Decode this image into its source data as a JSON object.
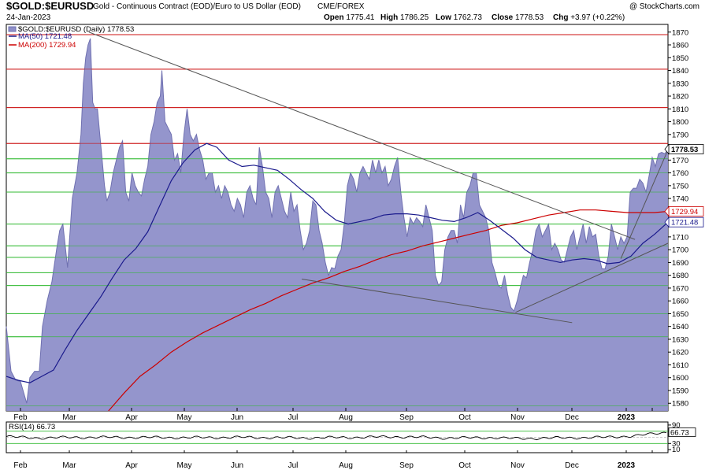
{
  "header": {
    "symbol": "$GOLD:$EURUSD",
    "description": "Gold - Continuous Contract (EOD)/Euro to US Dollar (EOD)",
    "exchange": "CME/FOREX",
    "watermark": "@ StockCharts.com",
    "date": "24-Jan-2023",
    "ohlc": [
      {
        "label": "Open",
        "value": "1775.41"
      },
      {
        "label": "High",
        "value": "1786.25"
      },
      {
        "label": "Low",
        "value": "1762.73"
      },
      {
        "label": "Close",
        "value": "1778.53"
      },
      {
        "label": "Chg",
        "value": "+3.97 (+0.22%)"
      }
    ]
  },
  "legend": {
    "main": "$GOLD:$EURUSD (Daily) 1778.53",
    "ma50": "MA(50) 1721.48",
    "ma200": "MA(200) 1729.94"
  },
  "price_tags": {
    "close": "1778.53",
    "ma200": "1729.94",
    "ma50": "1721.48"
  },
  "rsi": {
    "label": "RSI(14) 66.73",
    "value_tag": "66.73",
    "ticks": [
      "90",
      "70",
      "30",
      "10"
    ]
  },
  "colors": {
    "area_fill": "#8e8fc9",
    "area_line": "#6f70b0",
    "ma50": "#1a1a8c",
    "ma200": "#cc0000",
    "green_lines": "#33bb33",
    "red_lines": "#cc1111",
    "trend_lines": "#555555"
  },
  "chart_data": {
    "type": "area",
    "y_ticks": [
      1580,
      1590,
      1600,
      1610,
      1620,
      1630,
      1640,
      1650,
      1660,
      1670,
      1680,
      1690,
      1700,
      1710,
      1720,
      1730,
      1740,
      1750,
      1760,
      1770,
      1780,
      1790,
      1800,
      1810,
      1820,
      1830,
      1840,
      1850,
      1860,
      1870
    ],
    "ylim": [
      1574,
      1876
    ],
    "months": [
      "Feb",
      "Mar",
      "Apr",
      "May",
      "Jun",
      "Jul",
      "Aug",
      "Sep",
      "Oct",
      "Nov",
      "Dec",
      "2023",
      "Jan"
    ],
    "month_labels": [
      "Feb",
      "Mar",
      "Apr",
      "May",
      "Jun",
      "Jul",
      "Aug",
      "Sep",
      "Oct",
      "Nov",
      "Dec",
      "2023"
    ],
    "x_bold_label": "2023",
    "price": [
      [
        0,
        1640
      ],
      [
        6,
        1605
      ],
      [
        12,
        1598
      ],
      [
        18,
        1597
      ],
      [
        26,
        1580
      ],
      [
        30,
        1600
      ],
      [
        36,
        1605
      ],
      [
        42,
        1605
      ],
      [
        46,
        1640
      ],
      [
        52,
        1660
      ],
      [
        58,
        1675
      ],
      [
        64,
        1700
      ],
      [
        68,
        1715
      ],
      [
        72,
        1720
      ],
      [
        78,
        1686
      ],
      [
        84,
        1740
      ],
      [
        90,
        1760
      ],
      [
        95,
        1790
      ],
      [
        98,
        1830
      ],
      [
        101,
        1850
      ],
      [
        104,
        1860
      ],
      [
        107,
        1865
      ],
      [
        110,
        1815
      ],
      [
        113,
        1810
      ],
      [
        116,
        1810
      ],
      [
        119,
        1790
      ],
      [
        122,
        1770
      ],
      [
        125,
        1750
      ],
      [
        128,
        1738
      ],
      [
        132,
        1745
      ],
      [
        136,
        1760
      ],
      [
        140,
        1770
      ],
      [
        144,
        1780
      ],
      [
        148,
        1785
      ],
      [
        152,
        1745
      ],
      [
        156,
        1738
      ],
      [
        160,
        1760
      ],
      [
        164,
        1750
      ],
      [
        168,
        1745
      ],
      [
        172,
        1742
      ],
      [
        176,
        1755
      ],
      [
        180,
        1765
      ],
      [
        184,
        1790
      ],
      [
        188,
        1800
      ],
      [
        192,
        1815
      ],
      [
        196,
        1820
      ],
      [
        198,
        1840
      ],
      [
        202,
        1800
      ],
      [
        206,
        1795
      ],
      [
        210,
        1790
      ],
      [
        214,
        1770
      ],
      [
        218,
        1775
      ],
      [
        222,
        1760
      ],
      [
        226,
        1790
      ],
      [
        230,
        1810
      ],
      [
        234,
        1790
      ],
      [
        238,
        1785
      ],
      [
        242,
        1790
      ],
      [
        246,
        1778
      ],
      [
        250,
        1770
      ],
      [
        254,
        1755
      ],
      [
        258,
        1760
      ],
      [
        262,
        1760
      ],
      [
        266,
        1745
      ],
      [
        270,
        1750
      ],
      [
        274,
        1740
      ],
      [
        278,
        1750
      ],
      [
        282,
        1745
      ],
      [
        286,
        1735
      ],
      [
        290,
        1730
      ],
      [
        294,
        1740
      ],
      [
        298,
        1735
      ],
      [
        302,
        1725
      ],
      [
        306,
        1745
      ],
      [
        310,
        1750
      ],
      [
        314,
        1740
      ],
      [
        318,
        1735
      ],
      [
        322,
        1780
      ],
      [
        326,
        1765
      ],
      [
        330,
        1745
      ],
      [
        334,
        1740
      ],
      [
        338,
        1725
      ],
      [
        342,
        1745
      ],
      [
        346,
        1750
      ],
      [
        350,
        1740
      ],
      [
        354,
        1730
      ],
      [
        358,
        1725
      ],
      [
        362,
        1745
      ],
      [
        366,
        1730
      ],
      [
        370,
        1735
      ],
      [
        374,
        1715
      ],
      [
        378,
        1700
      ],
      [
        382,
        1705
      ],
      [
        386,
        1715
      ],
      [
        390,
        1738
      ],
      [
        394,
        1735
      ],
      [
        398,
        1715
      ],
      [
        402,
        1705
      ],
      [
        406,
        1690
      ],
      [
        410,
        1680
      ],
      [
        414,
        1686
      ],
      [
        418,
        1685
      ],
      [
        422,
        1695
      ],
      [
        426,
        1700
      ],
      [
        430,
        1720
      ],
      [
        434,
        1750
      ],
      [
        438,
        1760
      ],
      [
        442,
        1755
      ],
      [
        446,
        1745
      ],
      [
        450,
        1760
      ],
      [
        454,
        1765
      ],
      [
        458,
        1760
      ],
      [
        462,
        1755
      ],
      [
        466,
        1770
      ],
      [
        470,
        1760
      ],
      [
        474,
        1770
      ],
      [
        478,
        1760
      ],
      [
        482,
        1765
      ],
      [
        486,
        1750
      ],
      [
        490,
        1755
      ],
      [
        494,
        1765
      ],
      [
        498,
        1772
      ],
      [
        502,
        1745
      ],
      [
        506,
        1725
      ],
      [
        510,
        1710
      ],
      [
        514,
        1725
      ],
      [
        518,
        1720
      ],
      [
        522,
        1725
      ],
      [
        526,
        1722
      ],
      [
        530,
        1718
      ],
      [
        534,
        1735
      ],
      [
        538,
        1725
      ],
      [
        542,
        1715
      ],
      [
        546,
        1680
      ],
      [
        550,
        1672
      ],
      [
        554,
        1675
      ],
      [
        558,
        1700
      ],
      [
        562,
        1710
      ],
      [
        566,
        1715
      ],
      [
        570,
        1715
      ],
      [
        574,
        1705
      ],
      [
        578,
        1735
      ],
      [
        582,
        1725
      ],
      [
        586,
        1745
      ],
      [
        590,
        1750
      ],
      [
        594,
        1760
      ],
      [
        598,
        1760
      ],
      [
        602,
        1735
      ],
      [
        606,
        1730
      ],
      [
        610,
        1725
      ],
      [
        614,
        1715
      ],
      [
        618,
        1690
      ],
      [
        622,
        1682
      ],
      [
        626,
        1672
      ],
      [
        630,
        1670
      ],
      [
        634,
        1680
      ],
      [
        638,
        1665
      ],
      [
        642,
        1655
      ],
      [
        646,
        1652
      ],
      [
        650,
        1660
      ],
      [
        654,
        1670
      ],
      [
        658,
        1680
      ],
      [
        662,
        1678
      ],
      [
        666,
        1690
      ],
      [
        670,
        1700
      ],
      [
        674,
        1715
      ],
      [
        678,
        1720
      ],
      [
        682,
        1710
      ],
      [
        686,
        1715
      ],
      [
        690,
        1720
      ],
      [
        694,
        1700
      ],
      [
        698,
        1705
      ],
      [
        702,
        1700
      ],
      [
        706,
        1692
      ],
      [
        710,
        1690
      ],
      [
        714,
        1700
      ],
      [
        718,
        1710
      ],
      [
        722,
        1715
      ],
      [
        726,
        1700
      ],
      [
        730,
        1710
      ],
      [
        734,
        1720
      ],
      [
        738,
        1705
      ],
      [
        742,
        1718
      ],
      [
        746,
        1710
      ],
      [
        750,
        1712
      ],
      [
        754,
        1695
      ],
      [
        758,
        1685
      ],
      [
        762,
        1685
      ],
      [
        766,
        1695
      ],
      [
        770,
        1720
      ],
      [
        774,
        1710
      ],
      [
        778,
        1700
      ],
      [
        782,
        1710
      ],
      [
        786,
        1705
      ],
      [
        790,
        1710
      ],
      [
        794,
        1745
      ],
      [
        798,
        1748
      ],
      [
        802,
        1748
      ],
      [
        806,
        1755
      ],
      [
        810,
        1752
      ],
      [
        814,
        1745
      ],
      [
        818,
        1758
      ],
      [
        822,
        1772
      ],
      [
        826,
        1765
      ],
      [
        830,
        1775
      ],
      [
        834,
        1776
      ],
      [
        838,
        1775
      ],
      [
        842,
        1778.53
      ]
    ],
    "ma50": [
      [
        0,
        1601
      ],
      [
        15,
        1598
      ],
      [
        30,
        1596
      ],
      [
        45,
        1601
      ],
      [
        60,
        1606
      ],
      [
        75,
        1622
      ],
      [
        90,
        1637
      ],
      [
        105,
        1650
      ],
      [
        120,
        1663
      ],
      [
        135,
        1678
      ],
      [
        150,
        1692
      ],
      [
        165,
        1701
      ],
      [
        180,
        1714
      ],
      [
        195,
        1734
      ],
      [
        210,
        1754
      ],
      [
        225,
        1768
      ],
      [
        240,
        1778
      ],
      [
        255,
        1783
      ],
      [
        268,
        1780
      ],
      [
        283,
        1770
      ],
      [
        300,
        1765
      ],
      [
        315,
        1766
      ],
      [
        330,
        1764
      ],
      [
        345,
        1762
      ],
      [
        360,
        1755
      ],
      [
        375,
        1747
      ],
      [
        390,
        1740
      ],
      [
        405,
        1730
      ],
      [
        420,
        1723
      ],
      [
        435,
        1720
      ],
      [
        450,
        1722
      ],
      [
        465,
        1724
      ],
      [
        480,
        1727
      ],
      [
        495,
        1728
      ],
      [
        510,
        1728
      ],
      [
        525,
        1727
      ],
      [
        540,
        1725
      ],
      [
        555,
        1723
      ],
      [
        570,
        1722
      ],
      [
        585,
        1725
      ],
      [
        600,
        1729
      ],
      [
        615,
        1723
      ],
      [
        630,
        1716
      ],
      [
        645,
        1709
      ],
      [
        660,
        1700
      ],
      [
        675,
        1694
      ],
      [
        690,
        1692
      ],
      [
        705,
        1690
      ],
      [
        720,
        1692
      ],
      [
        735,
        1693
      ],
      [
        750,
        1692
      ],
      [
        765,
        1689
      ],
      [
        780,
        1690
      ],
      [
        795,
        1695
      ],
      [
        810,
        1705
      ],
      [
        825,
        1712
      ],
      [
        842,
        1721.48
      ]
    ],
    "ma200": [
      [
        130,
        1574
      ],
      [
        150,
        1588
      ],
      [
        170,
        1601
      ],
      [
        190,
        1610
      ],
      [
        210,
        1620
      ],
      [
        230,
        1628
      ],
      [
        250,
        1635
      ],
      [
        270,
        1641
      ],
      [
        290,
        1647
      ],
      [
        310,
        1653
      ],
      [
        330,
        1658
      ],
      [
        350,
        1664
      ],
      [
        370,
        1669
      ],
      [
        390,
        1674
      ],
      [
        410,
        1678
      ],
      [
        430,
        1683
      ],
      [
        450,
        1687
      ],
      [
        470,
        1692
      ],
      [
        490,
        1696
      ],
      [
        510,
        1699
      ],
      [
        530,
        1703
      ],
      [
        550,
        1706
      ],
      [
        570,
        1709
      ],
      [
        590,
        1712
      ],
      [
        610,
        1715
      ],
      [
        630,
        1719
      ],
      [
        650,
        1721
      ],
      [
        670,
        1724
      ],
      [
        690,
        1727
      ],
      [
        710,
        1729
      ],
      [
        730,
        1731
      ],
      [
        750,
        1731
      ],
      [
        770,
        1730
      ],
      [
        790,
        1729
      ],
      [
        810,
        1729
      ],
      [
        825,
        1729
      ],
      [
        842,
        1729.94
      ]
    ],
    "red_levels": [
      1868,
      1841,
      1811,
      1783
    ],
    "green_levels": [
      1771,
      1760,
      1745,
      1720,
      1703,
      1694,
      1682,
      1672,
      1650,
      1632,
      1578
    ],
    "trendlines": [
      {
        "from": [
          105,
          1870
        ],
        "to": [
          800,
          1708
        ]
      },
      {
        "from": [
          376,
          1677
        ],
        "to": [
          720,
          1643
        ]
      },
      {
        "from": [
          648,
          1651
        ],
        "to": [
          842,
          1705
        ]
      },
      {
        "from": [
          782,
          1693
        ],
        "to": [
          842,
          1778
        ]
      }
    ],
    "rsi_values": [
      [
        0,
        52
      ],
      [
        40,
        48
      ],
      [
        90,
        50
      ],
      [
        150,
        50
      ],
      [
        230,
        49
      ],
      [
        300,
        50
      ],
      [
        380,
        48
      ],
      [
        440,
        50
      ],
      [
        500,
        52
      ],
      [
        560,
        48
      ],
      [
        620,
        49
      ],
      [
        650,
        46
      ],
      [
        700,
        48
      ],
      [
        760,
        50
      ],
      [
        800,
        55
      ],
      [
        842,
        66.73
      ]
    ]
  }
}
